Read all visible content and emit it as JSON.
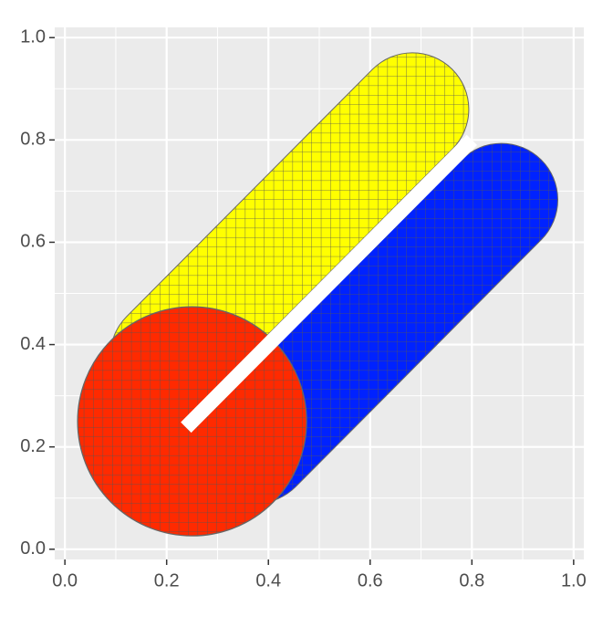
{
  "chart_data": {
    "type": "shapes",
    "xlim": [
      -0.02,
      1.02
    ],
    "ylim": [
      -0.02,
      1.02
    ],
    "xticks": [
      {
        "value": 0,
        "label": "0.0"
      },
      {
        "value": 0.2,
        "label": "0.2"
      },
      {
        "value": 0.4,
        "label": "0.4"
      },
      {
        "value": 0.6,
        "label": "0.6"
      },
      {
        "value": 0.8,
        "label": "0.8"
      },
      {
        "value": 1,
        "label": "1.0"
      }
    ],
    "yticks": [
      {
        "value": 0,
        "label": "0.0"
      },
      {
        "value": 0.2,
        "label": "0.2"
      },
      {
        "value": 0.4,
        "label": "0.4"
      },
      {
        "value": 0.6,
        "label": "0.6"
      },
      {
        "value": 0.8,
        "label": "0.8"
      },
      {
        "value": 1,
        "label": "1.0"
      }
    ],
    "x_minor_ticks": [
      0.1,
      0.3,
      0.5,
      0.7,
      0.9
    ],
    "y_minor_ticks": [
      0.1,
      0.3,
      0.5,
      0.7,
      0.9
    ],
    "grid": true,
    "shapes": [
      {
        "shape": "capsule",
        "color": "#ffff00",
        "x": [
          0.683,
          0.2
        ],
        "y": [
          0.86,
          0.377
        ],
        "r": 0.11
      },
      {
        "shape": "capsule",
        "color": "#0022ff",
        "x": [
          0.858,
          0.375
        ],
        "y": [
          0.683,
          0.2
        ],
        "r": 0.11
      },
      {
        "shape": "circle",
        "color": "#ff2a00",
        "x": [
          0.25
        ],
        "y": [
          0.25
        ],
        "r": 0.225
      },
      {
        "shape": "band",
        "color": "#ffffff",
        "x": [
          0.238,
          0.8
        ],
        "y": [
          0.238,
          0.8
        ],
        "r": 0.0145
      }
    ]
  }
}
